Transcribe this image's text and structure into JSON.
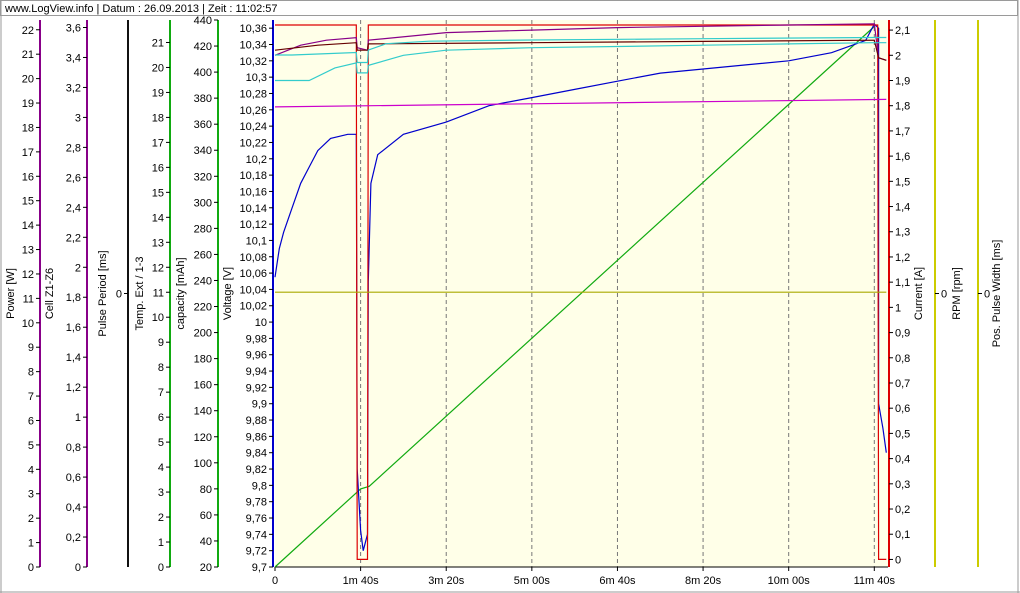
{
  "header": {
    "text": "www.LogView.info   |   Datum : 26.09.2013   |   Zeit : 11:02:57"
  },
  "colors": {
    "plot_bg": "#ffffe8",
    "voltage": "#0000cc",
    "capacity": "#11aa11",
    "cell": "#880088",
    "power": "#880088",
    "current": "#dd0000",
    "temp": "#33cccc",
    "pulse_period": "#111111",
    "rpm": "#cccc00",
    "pos_pulse_width": "#cccc00",
    "magenta": "#cc00cc",
    "darkred": "#660000",
    "olive": "#aaaa00"
  },
  "chart_data": {
    "type": "line",
    "xlabel": "",
    "x_tick_labels": [
      "0",
      "1m 40s",
      "3m 20s",
      "5m 00s",
      "6m 40s",
      "8m 20s",
      "10m 00s",
      "11m 40s"
    ],
    "x_tick_seconds": [
      0,
      100,
      200,
      300,
      400,
      500,
      600,
      700
    ],
    "xlim": [
      0,
      716
    ],
    "axes": [
      {
        "id": "power",
        "label": "Power [W]",
        "side": "left",
        "ticks": [
          "0",
          "1",
          "2",
          "3",
          "4",
          "5",
          "6",
          "7",
          "8",
          "9",
          "10",
          "11",
          "12",
          "13",
          "14",
          "15",
          "16",
          "17",
          "18",
          "19",
          "20",
          "21",
          "22"
        ],
        "ylim": [
          0,
          22.4
        ],
        "color": "#880088"
      },
      {
        "id": "cell",
        "label": "Cell Z1-Z6",
        "side": "left",
        "ticks": [
          "0",
          "0,2",
          "0,4",
          "0,6",
          "0,8",
          "1",
          "1,2",
          "1,4",
          "1,6",
          "1,8",
          "2",
          "2,2",
          "2,4",
          "2,6",
          "2,8",
          "3",
          "3,2",
          "3,4",
          "3,6"
        ],
        "ylim": [
          0,
          3.65
        ],
        "color": "#880088"
      },
      {
        "id": "pulse_period",
        "label": "Pulse Period  [ms]",
        "side": "left",
        "ticks": [
          "0"
        ],
        "ylim": [
          -1,
          1
        ],
        "color": "#111111"
      },
      {
        "id": "temp",
        "label": "Temp. Ext / 1-3",
        "side": "left",
        "ticks": [
          "0",
          "1",
          "2",
          "3",
          "4",
          "5",
          "6",
          "7",
          "8",
          "9",
          "10",
          "11",
          "12",
          "13",
          "14",
          "15",
          "16",
          "17",
          "18",
          "19",
          "20",
          "21"
        ],
        "ylim": [
          0,
          21.9
        ],
        "color": "#11aa11"
      },
      {
        "id": "capacity",
        "label": "capacity  [mAh]",
        "side": "left",
        "ticks": [
          "20",
          "40",
          "60",
          "80",
          "100",
          "120",
          "140",
          "160",
          "180",
          "200",
          "220",
          "240",
          "260",
          "280",
          "300",
          "320",
          "340",
          "360",
          "380",
          "400",
          "420",
          "440"
        ],
        "ylim": [
          20,
          440
        ],
        "color": "#11aa11"
      },
      {
        "id": "voltage",
        "label": "Voltage [V]",
        "side": "left",
        "ticks": [
          "9,7",
          "9,72",
          "9,74",
          "9,76",
          "9,78",
          "9,8",
          "9,82",
          "9,84",
          "9,86",
          "9,88",
          "9,9",
          "9,92",
          "9,94",
          "9,96",
          "9,98",
          "10",
          "10,02",
          "10,04",
          "10,06",
          "10,08",
          "10,1",
          "10,12",
          "10,14",
          "10,16",
          "10,18",
          "10,2",
          "10,22",
          "10,24",
          "10,26",
          "10,28",
          "10,3",
          "10,32",
          "10,34",
          "10,36"
        ],
        "ylim": [
          9.7,
          10.37
        ],
        "color": "#0000cc"
      },
      {
        "id": "current",
        "label": "Current [A]",
        "side": "right",
        "ticks": [
          "0",
          "0,1",
          "0,2",
          "0,3",
          "0,4",
          "0,5",
          "0,6",
          "0,7",
          "0,8",
          "0,9",
          "1",
          "1,1",
          "1,2",
          "1,3",
          "1,4",
          "1,5",
          "1,6",
          "1,7",
          "1,8",
          "1,9",
          "2",
          "2,1"
        ],
        "ylim": [
          -0.03,
          2.14
        ],
        "color": "#dd0000"
      },
      {
        "id": "rpm",
        "label": "RPM  [rpm]",
        "side": "right",
        "ticks": [
          "0"
        ],
        "ylim": [
          -1,
          1
        ],
        "color": "#cccc00"
      },
      {
        "id": "pos_pulse_width",
        "label": "Pos. Pulse Width  [ms]",
        "side": "right",
        "ticks": [
          "0"
        ],
        "ylim": [
          -1,
          1
        ],
        "color": "#cccc00"
      }
    ],
    "grid": true,
    "legend": "none",
    "series": [
      {
        "axis": "capacity",
        "color": "#11aa11",
        "points": [
          [
            0,
            20
          ],
          [
            100,
            80
          ],
          [
            110,
            82
          ],
          [
            700,
            435
          ]
        ]
      },
      {
        "axis": "voltage",
        "color": "#0000cc",
        "points": [
          [
            0,
            10.055
          ],
          [
            5,
            10.09
          ],
          [
            10,
            10.11
          ],
          [
            20,
            10.14
          ],
          [
            30,
            10.17
          ],
          [
            40,
            10.19
          ],
          [
            50,
            10.21
          ],
          [
            65,
            10.225
          ],
          [
            85,
            10.23
          ],
          [
            95,
            10.23
          ],
          [
            96,
            9.82
          ],
          [
            100,
            9.745
          ],
          [
            103,
            9.72
          ],
          [
            108,
            9.74
          ],
          [
            109,
            10.05
          ],
          [
            112,
            10.17
          ],
          [
            120,
            10.205
          ],
          [
            150,
            10.23
          ],
          [
            200,
            10.245
          ],
          [
            250,
            10.265
          ],
          [
            300,
            10.275
          ],
          [
            350,
            10.285
          ],
          [
            400,
            10.295
          ],
          [
            450,
            10.305
          ],
          [
            500,
            10.31
          ],
          [
            550,
            10.315
          ],
          [
            600,
            10.32
          ],
          [
            650,
            10.33
          ],
          [
            690,
            10.345
          ],
          [
            700,
            10.365
          ],
          [
            705,
            10.36
          ],
          [
            705,
            9.9
          ],
          [
            710,
            9.87
          ],
          [
            714,
            9.84
          ]
        ]
      },
      {
        "axis": "current",
        "color": "#dd0000",
        "points": [
          [
            0,
            2.12
          ],
          [
            95,
            2.12
          ],
          [
            96,
            0.0
          ],
          [
            108,
            0.0
          ],
          [
            109,
            2.12
          ],
          [
            704,
            2.12
          ],
          [
            705,
            0.0
          ],
          [
            714,
            0.0
          ]
        ]
      },
      {
        "axis": "current",
        "color": "#880088",
        "points": [
          [
            0,
            2.0
          ],
          [
            30,
            2.04
          ],
          [
            60,
            2.06
          ],
          [
            95,
            2.07
          ],
          [
            96,
            2.03
          ],
          [
            108,
            2.02
          ],
          [
            109,
            2.06
          ],
          [
            200,
            2.09
          ],
          [
            300,
            2.1
          ],
          [
            400,
            2.11
          ],
          [
            500,
            2.115
          ],
          [
            600,
            2.12
          ],
          [
            700,
            2.125
          ],
          [
            705,
            1.99
          ],
          [
            714,
            1.98
          ]
        ]
      },
      {
        "axis": "current",
        "color": "#660000",
        "points": [
          [
            0,
            2.02
          ],
          [
            50,
            2.04
          ],
          [
            95,
            2.05
          ],
          [
            96,
            2.02
          ],
          [
            108,
            2.02
          ],
          [
            109,
            2.045
          ],
          [
            300,
            2.05
          ],
          [
            500,
            2.055
          ],
          [
            700,
            2.06
          ],
          [
            705,
            1.99
          ],
          [
            714,
            1.98
          ]
        ]
      },
      {
        "axis": "temp",
        "color": "#33cccc",
        "points": [
          [
            0,
            20.5
          ],
          [
            20,
            20.5
          ],
          [
            95,
            20.6
          ],
          [
            96,
            20.2
          ],
          [
            108,
            20.2
          ],
          [
            109,
            20.7
          ],
          [
            130,
            20.95
          ],
          [
            180,
            21.05
          ],
          [
            300,
            21.1
          ],
          [
            500,
            21.15
          ],
          [
            700,
            21.2
          ],
          [
            714,
            21.2
          ]
        ]
      },
      {
        "axis": "current",
        "color": "#33cccc",
        "points": [
          [
            0,
            1.9
          ],
          [
            40,
            1.9
          ],
          [
            70,
            1.95
          ],
          [
            95,
            1.97
          ],
          [
            96,
            1.93
          ],
          [
            108,
            1.93
          ],
          [
            109,
            1.96
          ],
          [
            150,
            2.0
          ],
          [
            200,
            2.02
          ],
          [
            300,
            2.03
          ],
          [
            400,
            2.035
          ],
          [
            500,
            2.04
          ],
          [
            600,
            2.045
          ],
          [
            700,
            2.05
          ],
          [
            714,
            2.05
          ]
        ]
      },
      {
        "axis": "cell",
        "color": "#cc00cc",
        "points": [
          [
            0,
            3.07
          ],
          [
            714,
            3.12
          ]
        ]
      },
      {
        "axis": "current",
        "color": "#aaaa00",
        "points": [
          [
            0,
            1.06
          ],
          [
            714,
            1.06
          ]
        ]
      }
    ]
  }
}
